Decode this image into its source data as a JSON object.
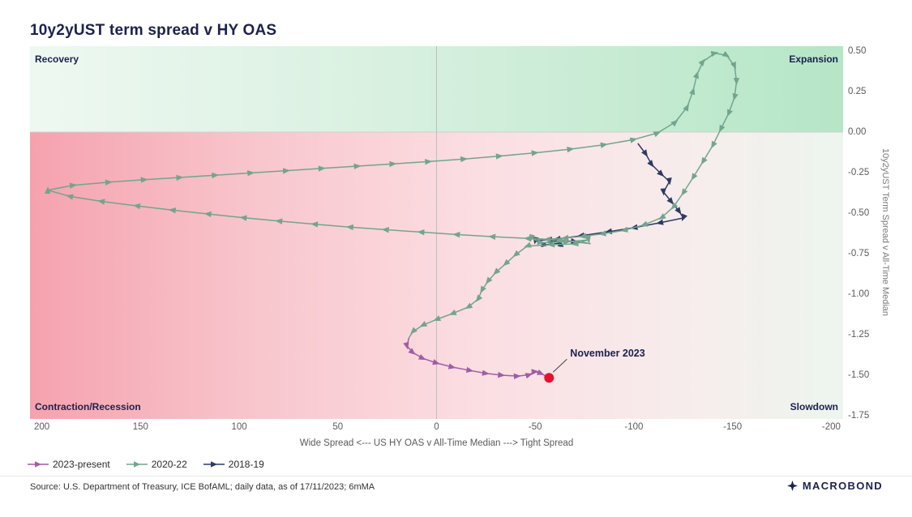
{
  "page": {
    "title": "10y2yUST term spread v HY OAS",
    "source": "Source: U.S. Department of Treasury, ICE BofAML; daily data, as of 17/11/2023; 6mMA",
    "brand": "MACROBOND"
  },
  "legend": {
    "items": [
      {
        "label": "2023-present",
        "color": "#a05da6"
      },
      {
        "label": "2020-22",
        "color": "#72a58e"
      },
      {
        "label": "2018-19",
        "color": "#2e3a64"
      }
    ]
  },
  "chart_data": {
    "type": "line",
    "subtype": "connected-scatter-phase-path-with-direction-arrows",
    "title": "10y2yUST term spread v HY OAS",
    "xlabel": "Wide Spread <--- US HY OAS v All-Time Median ---> Tight Spread",
    "ylabel": "10y2yUST Term Spread v All-Time Median",
    "xlim": [
      206,
      -206
    ],
    "ylim": [
      0.53,
      -1.77
    ],
    "x_axis_reversed": true,
    "grid": false,
    "legend_position": "bottom-left",
    "x_ticks": [
      {
        "v": 200,
        "label": "200"
      },
      {
        "v": 150,
        "label": "150"
      },
      {
        "v": 100,
        "label": "100"
      },
      {
        "v": 50,
        "label": "50"
      },
      {
        "v": 0,
        "label": "0"
      },
      {
        "v": -50,
        "label": "-50"
      },
      {
        "v": -100,
        "label": "-100"
      },
      {
        "v": -150,
        "label": "-150"
      },
      {
        "v": -200,
        "label": "-200"
      }
    ],
    "y_ticks": [
      {
        "v": 0.5,
        "label": "0.50"
      },
      {
        "v": 0.25,
        "label": "0.25"
      },
      {
        "v": 0.0,
        "label": "0.00"
      },
      {
        "v": -0.25,
        "label": "-0.25"
      },
      {
        "v": -0.5,
        "label": "-0.50"
      },
      {
        "v": -0.75,
        "label": "-0.75"
      },
      {
        "v": -1.0,
        "label": "-1.00"
      },
      {
        "v": -1.25,
        "label": "-1.25"
      },
      {
        "v": -1.5,
        "label": "-1.50"
      },
      {
        "v": -1.75,
        "label": "-1.75"
      }
    ],
    "quadrants": {
      "top_left": "Recovery",
      "top_right": "Expansion",
      "bottom_left": "Contraction/Recession",
      "bottom_right": "Slowdown"
    },
    "quadrant_colors": {
      "top_band_left": "#eef8f1",
      "top_band_right": "#b5e6c6",
      "bottom_band_left": "#f5a2ae",
      "bottom_band_right": "#edf5ee"
    },
    "series": [
      {
        "name": "2018-19",
        "color": "#2e3a64",
        "points": [
          [
            -102,
            -0.07
          ],
          [
            -106,
            -0.135
          ],
          [
            -109,
            -0.2
          ],
          [
            -114,
            -0.26
          ],
          [
            -118,
            -0.305
          ],
          [
            -115,
            -0.37
          ],
          [
            -119,
            -0.43
          ],
          [
            -123,
            -0.49
          ],
          [
            -125,
            -0.53
          ],
          [
            -113,
            -0.56
          ],
          [
            -100,
            -0.59
          ],
          [
            -87,
            -0.615
          ],
          [
            -73,
            -0.64
          ],
          [
            -61,
            -0.66
          ],
          [
            -50,
            -0.67
          ],
          [
            -55,
            -0.695
          ],
          [
            -63,
            -0.685
          ],
          [
            -58,
            -0.665
          ],
          [
            -70,
            -0.675
          ],
          [
            -78,
            -0.688
          ]
        ]
      },
      {
        "name": "2020-22",
        "color": "#72a58e",
        "points": [
          [
            -78,
            -0.688
          ],
          [
            -62,
            -0.668
          ],
          [
            -46,
            -0.656
          ],
          [
            -28,
            -0.645
          ],
          [
            -10,
            -0.632
          ],
          [
            8,
            -0.617
          ],
          [
            26,
            -0.602
          ],
          [
            44,
            -0.586
          ],
          [
            62,
            -0.568
          ],
          [
            80,
            -0.549
          ],
          [
            98,
            -0.528
          ],
          [
            116,
            -0.505
          ],
          [
            134,
            -0.481
          ],
          [
            152,
            -0.455
          ],
          [
            170,
            -0.427
          ],
          [
            186,
            -0.396
          ],
          [
            197,
            -0.358
          ],
          [
            184,
            -0.328
          ],
          [
            166,
            -0.309
          ],
          [
            148,
            -0.294
          ],
          [
            130,
            -0.28
          ],
          [
            112,
            -0.266
          ],
          [
            94,
            -0.252
          ],
          [
            76,
            -0.238
          ],
          [
            58,
            -0.224
          ],
          [
            40,
            -0.21
          ],
          [
            22,
            -0.196
          ],
          [
            4,
            -0.182
          ],
          [
            -14,
            -0.166
          ],
          [
            -32,
            -0.148
          ],
          [
            -50,
            -0.128
          ],
          [
            -68,
            -0.105
          ],
          [
            -85,
            -0.078
          ],
          [
            -100,
            -0.046
          ],
          [
            -112,
            -0.005
          ],
          [
            -121,
            0.062
          ],
          [
            -127,
            0.155
          ],
          [
            -130,
            0.255
          ],
          [
            -132,
            0.355
          ],
          [
            -135,
            0.435
          ],
          [
            -141,
            0.487
          ],
          [
            -147,
            0.473
          ],
          [
            -151,
            0.408
          ],
          [
            -152,
            0.312
          ],
          [
            -151,
            0.215
          ],
          [
            -148,
            0.115
          ],
          [
            -144,
            0.018
          ],
          [
            -140,
            -0.082
          ],
          [
            -135,
            -0.182
          ],
          [
            -130,
            -0.28
          ],
          [
            -125,
            -0.375
          ],
          [
            -120,
            -0.462
          ],
          [
            -114,
            -0.528
          ],
          [
            -105,
            -0.573
          ],
          [
            -95,
            -0.606
          ],
          [
            -84,
            -0.628
          ],
          [
            -74,
            -0.643
          ],
          [
            -65,
            -0.654
          ],
          [
            -56,
            -0.662
          ],
          [
            -48,
            -0.655
          ],
          [
            -53,
            -0.682
          ],
          [
            -66,
            -0.677
          ],
          [
            -77,
            -0.665
          ],
          [
            -70,
            -0.69
          ],
          [
            -58,
            -0.695
          ],
          [
            -46,
            -0.703
          ],
          [
            -40,
            -0.757
          ],
          [
            -35,
            -0.812
          ],
          [
            -30,
            -0.866
          ],
          [
            -26,
            -0.921
          ],
          [
            -23,
            -0.976
          ],
          [
            -21,
            -1.031
          ],
          [
            -16,
            -1.08
          ],
          [
            -8,
            -1.12
          ],
          [
            0,
            -1.156
          ],
          [
            7,
            -1.192
          ],
          [
            12,
            -1.231
          ],
          [
            14,
            -1.27
          ]
        ]
      },
      {
        "name": "2023-present",
        "color": "#a05da6",
        "points": [
          [
            14,
            -1.27
          ],
          [
            15,
            -1.32
          ],
          [
            12,
            -1.36
          ],
          [
            7,
            -1.396
          ],
          [
            0,
            -1.425
          ],
          [
            -8,
            -1.45
          ],
          [
            -17,
            -1.471
          ],
          [
            -25,
            -1.489
          ],
          [
            -33,
            -1.5
          ],
          [
            -41,
            -1.506
          ],
          [
            -47,
            -1.497
          ],
          [
            -50,
            -1.478
          ],
          [
            -53,
            -1.49
          ],
          [
            -57,
            -1.516
          ]
        ]
      }
    ],
    "annotation": {
      "label": "November 2023",
      "x": -57,
      "y": -1.516,
      "dot_color": "#e8112d"
    }
  }
}
